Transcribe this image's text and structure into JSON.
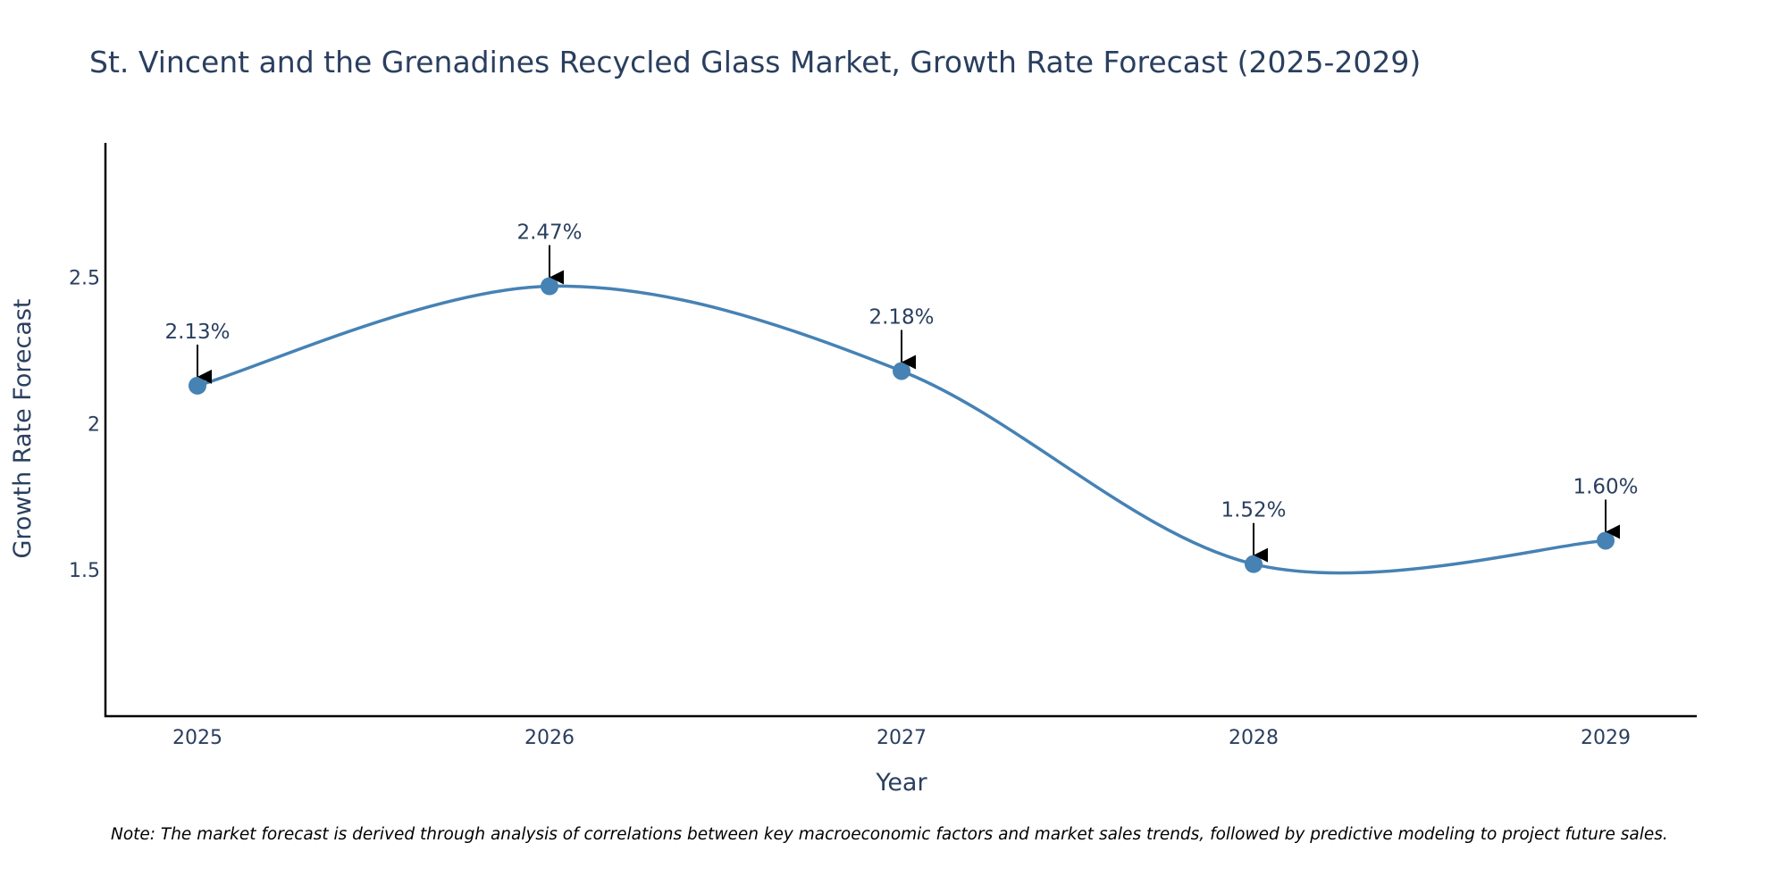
{
  "chart_data": {
    "type": "line",
    "title": "St. Vincent and the Grenadines Recycled Glass Market, Growth Rate Forecast (2025-2029)",
    "xlabel": "Year",
    "ylabel": "Growth Rate Forecast",
    "categories": [
      "2025",
      "2026",
      "2027",
      "2028",
      "2029"
    ],
    "values": [
      2.13,
      2.47,
      2.18,
      1.52,
      1.6
    ],
    "data_labels": [
      "2.13%",
      "2.47%",
      "2.18%",
      "1.52%",
      "1.60%"
    ],
    "y_ticks": [
      1.5,
      2,
      2.5
    ],
    "y_tick_labels": [
      "1.5",
      "2",
      "2.5"
    ],
    "ylim": [
      1.0,
      2.96
    ],
    "grid": false,
    "legend": "none",
    "line_shape": "spline",
    "note": "Note: The market forecast is derived through analysis of correlations between key macroeconomic factors and market sales trends, followed by predictive modeling to project future sales.",
    "colors": {
      "line": "#4682b4",
      "marker": "#4682b4",
      "axis": "#000000",
      "text": "#2a3f5f",
      "arrow": "#000000"
    }
  }
}
